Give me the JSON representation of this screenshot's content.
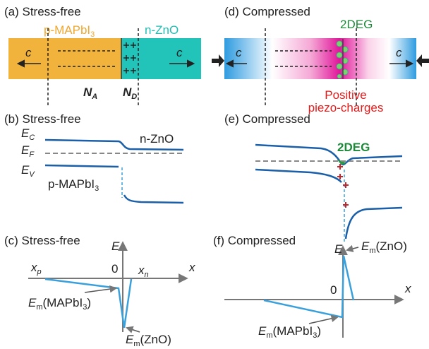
{
  "panels": {
    "a": {
      "label": "(a) Stress-free",
      "p_layer": [
        "p-MAPbI",
        "3"
      ],
      "n_layer": "n-ZnO",
      "c_left": "c",
      "c_right": "c",
      "na": [
        "N",
        "A"
      ],
      "nd": [
        "N",
        "D"
      ]
    },
    "d": {
      "label": "(d) Compressed",
      "deg": "2DEG",
      "c_left": "c",
      "c_right": "c",
      "charges": [
        "Positive",
        "piezo-charges"
      ]
    },
    "b": {
      "label": "(b) Stress-free",
      "ec": [
        "E",
        "C"
      ],
      "ef": [
        "E",
        "F"
      ],
      "ev": [
        "E",
        "V"
      ],
      "n_layer": "n-ZnO",
      "p_layer": [
        "p-MAPbI",
        "3"
      ]
    },
    "e": {
      "label": "(e) Compressed",
      "deg": "2DEG"
    },
    "c": {
      "label": "(c) Stress-free",
      "e_axis": "E",
      "x_axis": "x",
      "origin": "0",
      "xp": [
        "x",
        "p"
      ],
      "xn": [
        "x",
        "n"
      ],
      "em_mapbi": [
        "E",
        "m",
        "(MAPbI",
        "3",
        ")"
      ],
      "em_zno": [
        "E",
        "m",
        "(ZnO)"
      ]
    },
    "f": {
      "label": "(f) Compressed",
      "e_axis": "E",
      "x_axis": "x",
      "origin": "0",
      "em_zno": [
        "E",
        "m",
        "(ZnO)"
      ],
      "em_mapbi": [
        "E",
        "m",
        "(MAPbI",
        "3",
        ")"
      ]
    }
  }
}
